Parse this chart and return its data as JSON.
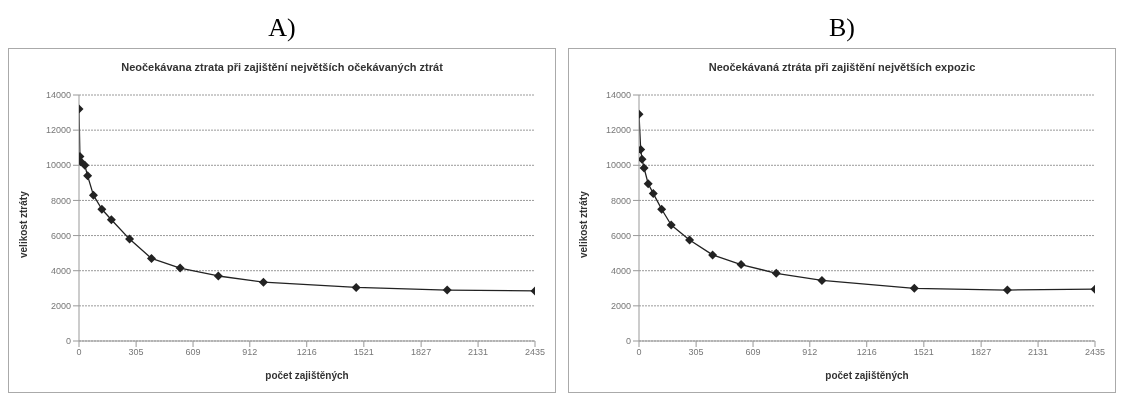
{
  "chart_data": [
    {
      "type": "line",
      "title": "A)",
      "subtitle": "Neočekávana ztrata při zajištění největších očekávaných ztrát",
      "xlabel": "počet zajištěných",
      "ylabel": "velikost ztráty",
      "x": [
        0,
        5,
        10,
        31,
        46,
        77,
        122,
        173,
        270,
        387,
        540,
        744,
        985,
        1480,
        1966,
        2435
      ],
      "series": [
        {
          "color": "#222222",
          "values": [
            13200,
            10500,
            10200,
            10000,
            9400,
            8300,
            7500,
            6900,
            5800,
            4700,
            4150,
            3700,
            3350,
            3050,
            2900,
            2850
          ]
        }
      ],
      "xlim": [
        0,
        2435
      ],
      "xticks": [
        0,
        305,
        609,
        912,
        1216,
        1521,
        1827,
        2131,
        2435
      ],
      "ylim": [
        0,
        14000
      ],
      "yticks": [
        0,
        2000,
        4000,
        6000,
        8000,
        10000,
        12000,
        14000
      ],
      "grid": "y",
      "marker": "diamond",
      "line_style": "solid",
      "legend": false
    },
    {
      "type": "line",
      "title": "B)",
      "subtitle": "Neočekávaná ztráta při zajištění největších expozic",
      "xlabel": "počet zajištěných",
      "ylabel": "velikost ztráty",
      "x": [
        0,
        9,
        16,
        27,
        49,
        76,
        121,
        172,
        270,
        393,
        545,
        733,
        977,
        1470,
        1967,
        2435
      ],
      "series": [
        {
          "color": "#222222",
          "values": [
            12900,
            10900,
            10350,
            9850,
            8950,
            8400,
            7500,
            6600,
            5750,
            4900,
            4350,
            3850,
            3450,
            3000,
            2900,
            2950
          ]
        }
      ],
      "xlim": [
        0,
        2435
      ],
      "xticks": [
        0,
        305,
        609,
        912,
        1216,
        1521,
        1827,
        2131,
        2435
      ],
      "ylim": [
        0,
        14000
      ],
      "yticks": [
        0,
        2000,
        4000,
        6000,
        8000,
        10000,
        12000,
        14000
      ],
      "grid": "y",
      "marker": "diamond",
      "line_style": "solid",
      "legend": false
    }
  ]
}
